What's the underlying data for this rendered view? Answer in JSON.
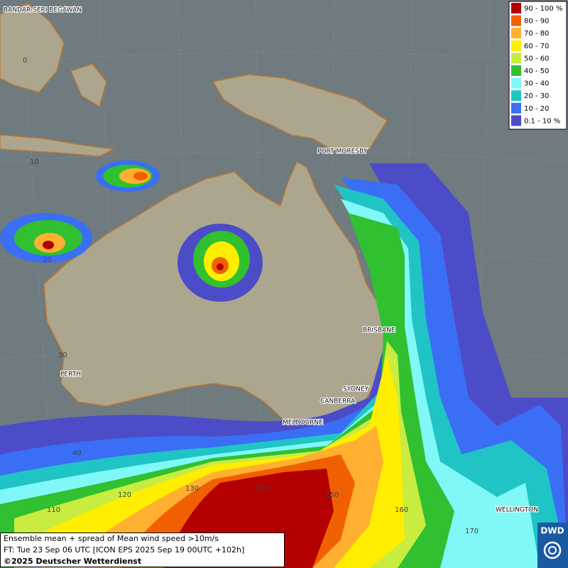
{
  "cities": [
    "BANDAR SERI BEGAWAN",
    "PORT MORESBY",
    "BRISBANE",
    "SYDNEY",
    "CANBERRA",
    "MELBOURNE",
    "PERTH",
    "WELLINGTON"
  ],
  "grid": {
    "lat": [
      "0",
      "10",
      "20",
      "30",
      "40"
    ],
    "lon": [
      "110",
      "120",
      "130",
      "140",
      "150",
      "160",
      "170"
    ]
  },
  "legend": [
    {
      "label": "90 - 100 %",
      "color": "#b40000"
    },
    {
      "label": "80 - 90",
      "color": "#f06000"
    },
    {
      "label": "70 - 80",
      "color": "#ffb030"
    },
    {
      "label": "60 - 70",
      "color": "#ffee00"
    },
    {
      "label": "50 - 60",
      "color": "#c8ec40"
    },
    {
      "label": "40 - 50",
      "color": "#30c030"
    },
    {
      "label": "30 - 40",
      "color": "#80f8f8"
    },
    {
      "label": "20 - 30",
      "color": "#20c4c4"
    },
    {
      "label": "10 - 20",
      "color": "#3a6ef5"
    },
    {
      "label": "0.1 - 10 %",
      "color": "#4c4cc8"
    }
  ],
  "caption": [
    "Ensemble mean + spread of Mean wind speed >10m/s",
    "FT: Tue 23 Sep 06 UTC [ICON EPS 2025 Sep 19 00UTC +102h]",
    "©2025 Deutscher Wetterdienst"
  ],
  "logo": "DWD"
}
